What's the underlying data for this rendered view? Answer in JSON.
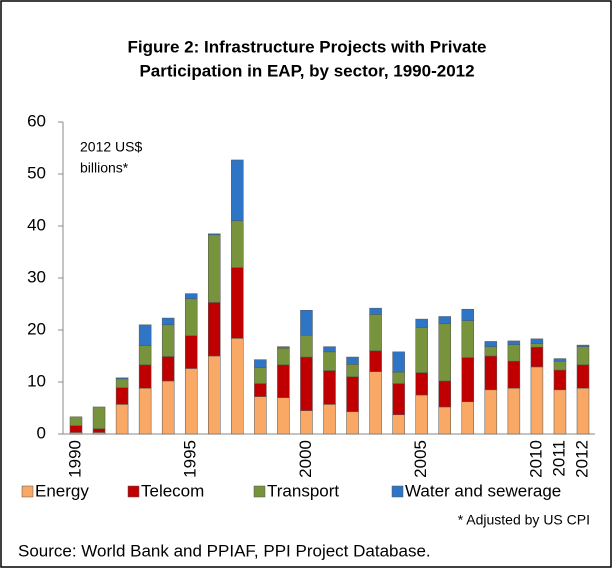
{
  "chart_data": {
    "type": "stacked-bar",
    "title": [
      "Figure 2: Infrastructure Projects with Private",
      "Participation in EAP, by sector, 1990-2012"
    ],
    "annotation": [
      "2012 US$",
      "billions*"
    ],
    "note": "* Adjusted by US CPI",
    "source": "Source:  World Bank and PPIAF, PPI Project Database.",
    "categories": [
      1990,
      null,
      null,
      null,
      null,
      1995,
      null,
      null,
      null,
      null,
      2000,
      null,
      null,
      null,
      null,
      2005,
      null,
      null,
      null,
      null,
      2010,
      2011,
      2012
    ],
    "series": [
      {
        "name": "Energy",
        "color": "#f9a866",
        "values": [
          0.3,
          0.3,
          5.7,
          8.8,
          10.2,
          12.6,
          15,
          18.4,
          7.2,
          7,
          4.5,
          5.7,
          4.3,
          12,
          3.7,
          7.5,
          5.2,
          6.2,
          8.5,
          8.8,
          12.9,
          8.5,
          8.8
        ]
      },
      {
        "name": "Telecom",
        "color": "#c00000",
        "values": [
          1.3,
          0.7,
          3.2,
          4.5,
          4.7,
          6.3,
          10.3,
          13.6,
          2.5,
          6.3,
          10.3,
          6.5,
          6.7,
          4,
          6,
          4.3,
          5,
          8.5,
          6.5,
          5.2,
          3.8,
          3.8,
          4.5
        ]
      },
      {
        "name": "Transport",
        "color": "#77933c",
        "values": [
          1.7,
          4.2,
          1.7,
          3.7,
          6.1,
          7.1,
          13,
          9,
          3.1,
          3.2,
          4.2,
          3.6,
          2.4,
          7,
          2.2,
          8.7,
          11,
          7.1,
          1.8,
          3.2,
          0.7,
          1.7,
          3.5
        ]
      },
      {
        "name": "Water and sewerage",
        "color": "#2e75c6",
        "values": [
          0,
          0,
          0.2,
          4,
          1.3,
          1,
          0.2,
          11.7,
          1.5,
          0.3,
          4.8,
          1,
          1.4,
          1.2,
          3.9,
          1.6,
          1.4,
          2.2,
          1,
          0.7,
          0.9,
          0.5,
          0.3
        ]
      }
    ],
    "ylim": [
      0,
      60
    ],
    "yticks": [
      0,
      10,
      20,
      30,
      40,
      50,
      60
    ],
    "grid": false
  }
}
